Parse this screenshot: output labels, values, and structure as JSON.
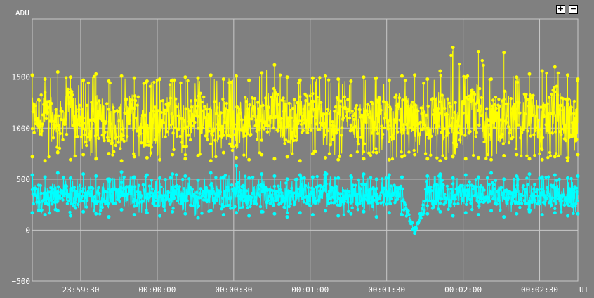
{
  "controls": {
    "zoom_in_label": "+",
    "zoom_out_label": "−"
  },
  "chart_data": {
    "type": "line",
    "ylabel": "ADU",
    "xlabel": "UT",
    "ylim": [
      -500,
      2070
    ],
    "xlim": [
      "23:59:11",
      "00:02:45"
    ],
    "grid": true,
    "background_color": "#808080",
    "grid_color": "#c8c8c8",
    "yticks": [
      {
        "value": 1500,
        "label": "1500"
      },
      {
        "value": 1000,
        "label": "1000"
      },
      {
        "value": 500,
        "label": "500"
      },
      {
        "value": 0,
        "label": "0"
      },
      {
        "value": -500,
        "label": "−500"
      }
    ],
    "xticks": [
      {
        "value": "23:59:30",
        "label": "23:59:30"
      },
      {
        "value": "00:00:00",
        "label": "00:00:00"
      },
      {
        "value": "00:00:30",
        "label": "00:00:30"
      },
      {
        "value": "00:01:00",
        "label": "00:01:00"
      },
      {
        "value": "00:01:30",
        "label": "00:01:30"
      },
      {
        "value": "00:02:00",
        "label": "00:02:00"
      },
      {
        "value": "00:02:30",
        "label": "00:02:30"
      }
    ],
    "series": [
      {
        "color": "#ffff00",
        "x": [
          "23:59:11",
          "23:59:16",
          "23:59:21",
          "23:59:26",
          "23:59:31",
          "23:59:36",
          "23:59:41",
          "23:59:46",
          "23:59:51",
          "23:59:56",
          "00:00:01",
          "00:00:06",
          "00:00:11",
          "00:00:16",
          "00:00:21",
          "00:00:26",
          "00:00:31",
          "00:00:36",
          "00:00:41",
          "00:00:46",
          "00:00:51",
          "00:00:56",
          "00:01:01",
          "00:01:06",
          "00:01:11",
          "00:01:16",
          "00:01:21",
          "00:01:26",
          "00:01:31",
          "00:01:36",
          "00:01:41",
          "00:01:46",
          "00:01:51",
          "00:01:56",
          "00:02:01",
          "00:02:06",
          "00:02:11",
          "00:02:16",
          "00:02:21",
          "00:02:26",
          "00:02:31",
          "00:02:36",
          "00:02:41",
          "00:02:45"
        ],
        "values": [
          1080,
          1150,
          1020,
          1200,
          980,
          1120,
          1060,
          1010,
          1180,
          950,
          1090,
          1130,
          1000,
          1170,
          1040,
          1100,
          990,
          1150,
          1070,
          1210,
          1030,
          1120,
          1180,
          1000,
          1090,
          1140,
          980,
          1110,
          1060,
          1160,
          1020,
          1090,
          1130,
          970,
          1100,
          1180,
          1040,
          1120,
          1070,
          1150,
          1010,
          1190,
          1080,
          1050
        ],
        "max_values": [
          1520,
          1480,
          1550,
          1500,
          1470,
          1530,
          1460,
          1510,
          1490,
          1460,
          1480,
          1470,
          1500,
          1490,
          1520,
          1480,
          1510,
          1470,
          1540,
          1620,
          1500,
          1470,
          1490,
          1510,
          1480,
          1460,
          1500,
          1490,
          1470,
          1510,
          1520,
          1480,
          1560,
          1790,
          1500,
          1750,
          1480,
          1740,
          1500,
          1530,
          1560,
          1600,
          1520,
          1480
        ],
        "min_values": [
          720,
          680,
          760,
          690,
          740,
          700,
          750,
          680,
          720,
          710,
          690,
          740,
          700,
          730,
          680,
          760,
          710,
          690,
          740,
          700,
          720,
          680,
          750,
          710,
          690,
          730,
          700,
          760,
          690,
          720,
          740,
          700,
          680,
          720,
          700,
          710,
          690,
          730,
          740,
          700,
          690,
          720,
          680,
          740
        ]
      },
      {
        "color": "#00ffff",
        "x": [
          "23:59:11",
          "23:59:16",
          "23:59:21",
          "23:59:26",
          "23:59:31",
          "23:59:36",
          "23:59:41",
          "23:59:46",
          "23:59:51",
          "23:59:56",
          "00:00:01",
          "00:00:06",
          "00:00:11",
          "00:00:16",
          "00:00:21",
          "00:00:26",
          "00:00:31",
          "00:00:36",
          "00:00:41",
          "00:00:46",
          "00:00:51",
          "00:00:56",
          "00:01:01",
          "00:01:06",
          "00:01:11",
          "00:01:16",
          "00:01:21",
          "00:01:26",
          "00:01:31",
          "00:01:36",
          "00:01:41",
          "00:01:46",
          "00:01:51",
          "00:01:56",
          "00:02:01",
          "00:02:06",
          "00:02:11",
          "00:02:16",
          "00:02:21",
          "00:02:26",
          "00:02:31",
          "00:02:36",
          "00:02:41",
          "00:02:45"
        ],
        "values": [
          350,
          330,
          370,
          320,
          360,
          340,
          310,
          380,
          330,
          350,
          320,
          360,
          340,
          300,
          370,
          330,
          350,
          320,
          360,
          340,
          310,
          350,
          330,
          370,
          320,
          340,
          360,
          310,
          350,
          330,
          -20,
          340,
          360,
          320,
          350,
          330,
          370,
          310,
          340,
          360,
          330,
          350,
          320,
          340
        ],
        "max_values": [
          540,
          520,
          560,
          510,
          550,
          530,
          500,
          570,
          520,
          540,
          510,
          550,
          530,
          490,
          560,
          520,
          630,
          510,
          550,
          530,
          500,
          540,
          520,
          560,
          510,
          530,
          550,
          500,
          540,
          520,
          20,
          530,
          550,
          510,
          540,
          520,
          560,
          500,
          530,
          550,
          520,
          540,
          510,
          530
        ],
        "min_values": [
          170,
          150,
          190,
          140,
          180,
          160,
          130,
          200,
          150,
          170,
          140,
          180,
          160,
          120,
          190,
          150,
          170,
          140,
          180,
          160,
          130,
          170,
          150,
          190,
          140,
          160,
          180,
          130,
          170,
          150,
          -30,
          160,
          180,
          140,
          170,
          150,
          190,
          130,
          160,
          180,
          150,
          170,
          140,
          160
        ]
      }
    ]
  }
}
